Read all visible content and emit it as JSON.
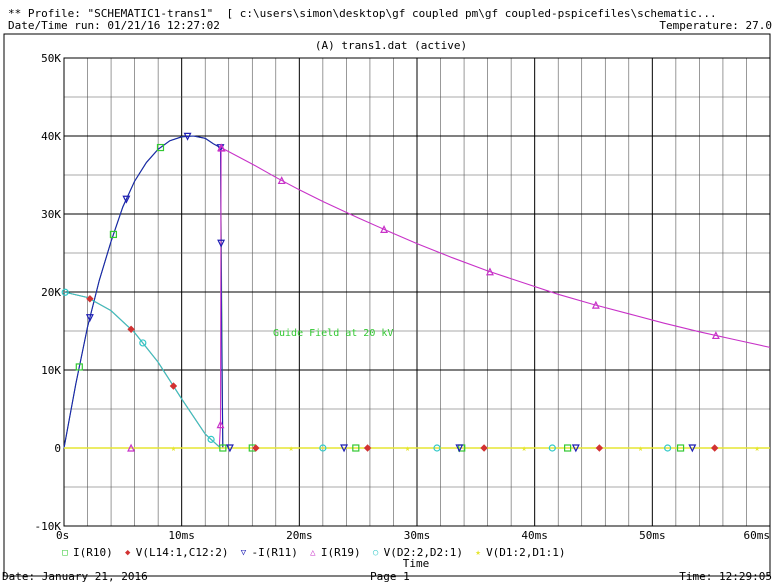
{
  "header": {
    "profile_line": "** Profile: \"SCHEMATIC1-trans1\"  [ c:\\users\\simon\\desktop\\gf coupled pm\\gf coupled-pspicefiles\\schematic...",
    "datetime_run": "Date/Time run: 01/21/16 12:27:02",
    "temperature": "Temperature: 27.0"
  },
  "footer": {
    "date": "Date: January 21, 2016",
    "page": "Page 1",
    "time": "Time: 12:29:05"
  },
  "chart_data": {
    "type": "line",
    "title": "(A) trans1.dat (active)",
    "xlabel": "Time",
    "ylabel": "",
    "annotation": "Guide Field at 20 kV",
    "xlim": [
      0,
      60
    ],
    "ylim": [
      -10000,
      50000
    ],
    "x_ticks": [
      0,
      10,
      20,
      30,
      40,
      50,
      60
    ],
    "x_tick_labels": [
      "0s",
      "10ms",
      "20ms",
      "30ms",
      "40ms",
      "50ms",
      "60ms"
    ],
    "y_ticks": [
      -10000,
      0,
      10000,
      20000,
      30000,
      40000,
      50000
    ],
    "y_tick_labels": [
      "-10K",
      "0",
      "10K",
      "20K",
      "30K",
      "40K",
      "50K"
    ],
    "grid": true,
    "series": [
      {
        "name": "I(R10)",
        "color": "#32c832",
        "marker": "square",
        "x": [
          0.0,
          1.0,
          2.0,
          3.0,
          4.0,
          5.0,
          6.0,
          7.0,
          8.0,
          9.0,
          10.0,
          11.0,
          12.0,
          12.7,
          13.3,
          13.5,
          20,
          30,
          40,
          50,
          60
        ],
        "y": [
          0,
          8200,
          15500,
          21500,
          26500,
          30900,
          34200,
          36600,
          38300,
          39400,
          39900,
          40000,
          39700,
          39000,
          38500,
          0,
          0,
          0,
          0,
          0,
          0
        ],
        "marker_x": [
          1.3,
          4.2,
          8.2,
          13.5,
          16.0,
          24.8,
          33.8,
          42.8,
          52.4
        ]
      },
      {
        "name": "V(L14:1,C12:2)",
        "color": "#d23232",
        "marker": "diamond",
        "x": [
          0,
          2,
          4,
          6,
          8,
          10,
          12,
          13.3,
          13.5,
          60
        ],
        "y": [
          20000,
          19300,
          17600,
          14800,
          11000,
          6300,
          1800,
          0,
          0,
          0
        ],
        "marker_x": [
          2.2,
          5.7,
          9.3,
          16.3,
          25.8,
          35.7,
          45.5,
          55.3
        ]
      },
      {
        "name": "-I(R11)",
        "color": "#1e1eb4",
        "marker": "triangle-down",
        "x": [
          0.0,
          1.0,
          2.0,
          3.0,
          4.0,
          5.0,
          6.0,
          7.0,
          8.0,
          9.0,
          10.0,
          11.0,
          12.0,
          12.7,
          13.3,
          13.4,
          13.5,
          60
        ],
        "y": [
          0,
          8200,
          15500,
          21500,
          26500,
          30900,
          34200,
          36600,
          38300,
          39400,
          39900,
          40000,
          39700,
          39000,
          38500,
          14000,
          0,
          0
        ],
        "marker_x": [
          2.2,
          5.3,
          10.5,
          13.3,
          13.35,
          14.1,
          23.8,
          33.6,
          43.5,
          53.4
        ]
      },
      {
        "name": "I(R19)",
        "color": "#c832c8",
        "marker": "triangle-up",
        "x": [
          0,
          13.2,
          13.3,
          13.35,
          14,
          16,
          18,
          20,
          22,
          25,
          28,
          30,
          33,
          36,
          39,
          42,
          45,
          48,
          51,
          54,
          57,
          60
        ],
        "y": [
          0,
          0,
          3000,
          38500,
          38000,
          36400,
          34700,
          33100,
          31600,
          29500,
          27500,
          26200,
          24400,
          22700,
          21200,
          19700,
          18400,
          17200,
          16000,
          14900,
          13900,
          12900
        ],
        "marker_x": [
          5.7,
          13.3,
          13.35,
          13.4,
          18.5,
          27.2,
          36.2,
          45.2,
          55.4
        ]
      },
      {
        "name": "V(D2:2,D2:1)",
        "color": "#32c8c8",
        "marker": "circle",
        "x": [
          0,
          2,
          4,
          6,
          8,
          10,
          12,
          13.3,
          13.5,
          60
        ],
        "y": [
          20000,
          19300,
          17600,
          14800,
          11000,
          6300,
          1800,
          0,
          0,
          0
        ],
        "marker_x": [
          0.1,
          6.7,
          12.5,
          22.0,
          31.7,
          41.5,
          51.3
        ]
      },
      {
        "name": "V(D1:2,D1:1)",
        "color": "#e6e632",
        "marker": "star",
        "x": [
          0,
          60
        ],
        "y": [
          0,
          0
        ],
        "marker_x": [
          9.3,
          19.3,
          29.2,
          39.1,
          49.0,
          58.9
        ]
      }
    ]
  }
}
